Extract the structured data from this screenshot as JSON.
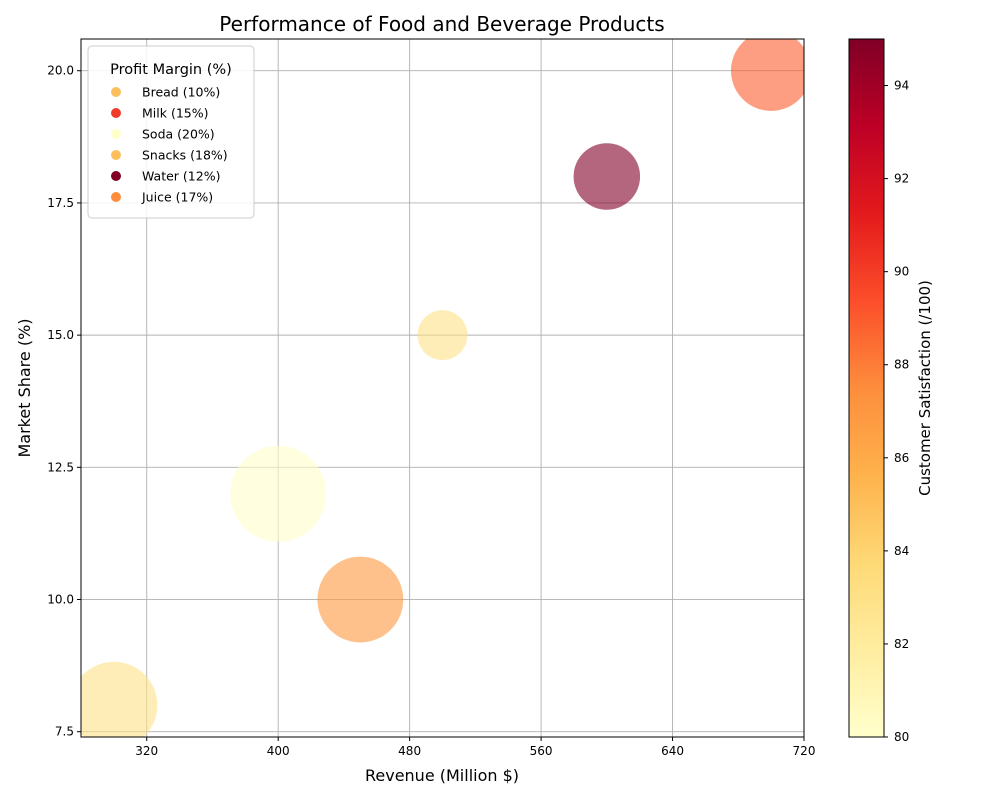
{
  "chart_data": {
    "type": "scatter",
    "title": "Performance of Food and Beverage Products",
    "xlabel": "Revenue (Million $)",
    "ylabel": "Market Share (%)",
    "xlim": [
      280,
      720
    ],
    "ylim": [
      7.4,
      20.6
    ],
    "xticks": [
      320,
      400,
      480,
      560,
      640,
      720
    ],
    "yticks": [
      7.5,
      10.0,
      12.5,
      15.0,
      17.5,
      20.0
    ],
    "grid": true,
    "legend": {
      "title": "Profit Margin (%)",
      "placement": "top-left",
      "entries": [
        {
          "label": "Bread (10%)",
          "color": "#fdbf5e"
        },
        {
          "label": "Milk (15%)",
          "color": "#f03c2b"
        },
        {
          "label": "Soda (20%)",
          "color": "#ffffcc"
        },
        {
          "label": "Snacks (18%)",
          "color": "#fdbf5e"
        },
        {
          "label": "Water (12%)",
          "color": "#800026"
        },
        {
          "label": "Juice (17%)",
          "color": "#fd8d3c"
        }
      ]
    },
    "points": [
      {
        "product": "Bread",
        "revenue": 500,
        "market_share": 15,
        "satisfaction": 83,
        "bubble_size": 0.27
      },
      {
        "product": "Milk",
        "revenue": 700,
        "market_share": 20,
        "satisfaction": 89,
        "bubble_size": 0.7
      },
      {
        "product": "Soda",
        "revenue": 400,
        "market_share": 12,
        "satisfaction": 80,
        "bubble_size": 1.0
      },
      {
        "product": "Snacks",
        "revenue": 300,
        "market_share": 8,
        "satisfaction": 83,
        "bubble_size": 0.82
      },
      {
        "product": "Water",
        "revenue": 600,
        "market_share": 18,
        "satisfaction": 95,
        "bubble_size": 0.48
      },
      {
        "product": "Juice",
        "revenue": 450,
        "market_share": 10,
        "satisfaction": 87,
        "bubble_size": 0.8
      }
    ],
    "colorbar": {
      "label": "Customer Satisfaction (/100)",
      "range": [
        80,
        95
      ],
      "ticks": [
        80,
        82,
        84,
        86,
        88,
        90,
        92,
        94
      ],
      "colormap": "YlOrRd",
      "stops": [
        "#ffffcc",
        "#ffeda0",
        "#fed976",
        "#feb24c",
        "#fd8d3c",
        "#fc4e2a",
        "#e31a1c",
        "#bd0026",
        "#800026"
      ]
    },
    "marker_alpha": 0.6
  }
}
